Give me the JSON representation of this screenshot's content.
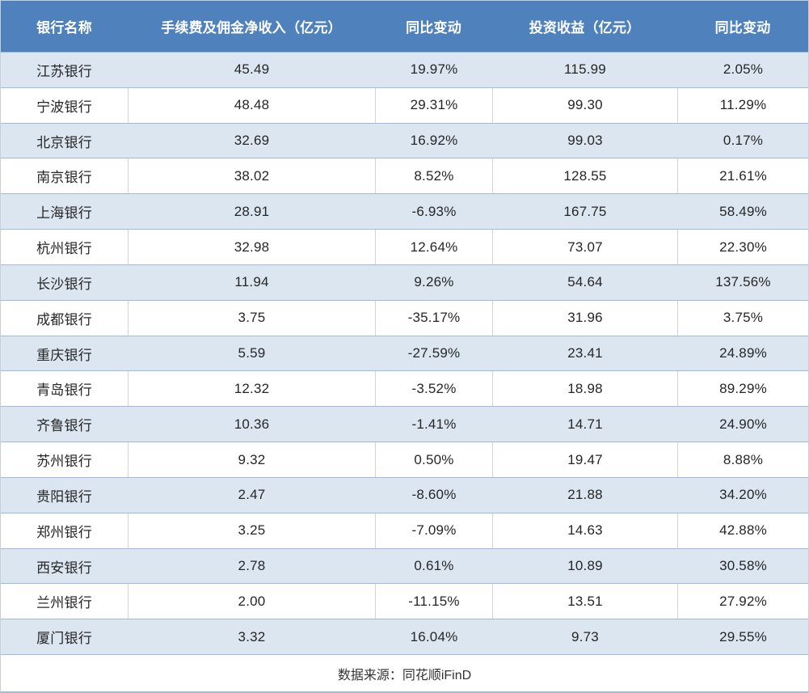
{
  "chart_data": {
    "type": "table",
    "columns": [
      "银行名称",
      "手续费及佣金净收入（亿元）",
      "同比变动",
      "投资收益（亿元）",
      "同比变动"
    ],
    "rows": [
      {
        "bank": "江苏银行",
        "fee": "45.49",
        "fee_yoy": "19.97%",
        "invest": "115.99",
        "invest_yoy": "2.05%"
      },
      {
        "bank": "宁波银行",
        "fee": "48.48",
        "fee_yoy": "29.31%",
        "invest": "99.30",
        "invest_yoy": "11.29%"
      },
      {
        "bank": "北京银行",
        "fee": "32.69",
        "fee_yoy": "16.92%",
        "invest": "99.03",
        "invest_yoy": "0.17%"
      },
      {
        "bank": "南京银行",
        "fee": "38.02",
        "fee_yoy": "8.52%",
        "invest": "128.55",
        "invest_yoy": "21.61%"
      },
      {
        "bank": "上海银行",
        "fee": "28.91",
        "fee_yoy": "-6.93%",
        "invest": "167.75",
        "invest_yoy": "58.49%"
      },
      {
        "bank": "杭州银行",
        "fee": "32.98",
        "fee_yoy": "12.64%",
        "invest": "73.07",
        "invest_yoy": "22.30%"
      },
      {
        "bank": "长沙银行",
        "fee": "11.94",
        "fee_yoy": "9.26%",
        "invest": "54.64",
        "invest_yoy": "137.56%"
      },
      {
        "bank": "成都银行",
        "fee": "3.75",
        "fee_yoy": "-35.17%",
        "invest": "31.96",
        "invest_yoy": "3.75%"
      },
      {
        "bank": "重庆银行",
        "fee": "5.59",
        "fee_yoy": "-27.59%",
        "invest": "23.41",
        "invest_yoy": "24.89%"
      },
      {
        "bank": "青岛银行",
        "fee": "12.32",
        "fee_yoy": "-3.52%",
        "invest": "18.98",
        "invest_yoy": "89.29%"
      },
      {
        "bank": "齐鲁银行",
        "fee": "10.36",
        "fee_yoy": "-1.41%",
        "invest": "14.71",
        "invest_yoy": "24.90%"
      },
      {
        "bank": "苏州银行",
        "fee": "9.32",
        "fee_yoy": "0.50%",
        "invest": "19.47",
        "invest_yoy": "8.88%"
      },
      {
        "bank": "贵阳银行",
        "fee": "2.47",
        "fee_yoy": "-8.60%",
        "invest": "21.88",
        "invest_yoy": "34.20%"
      },
      {
        "bank": "郑州银行",
        "fee": "3.25",
        "fee_yoy": "-7.09%",
        "invest": "14.63",
        "invest_yoy": "42.88%"
      },
      {
        "bank": "西安银行",
        "fee": "2.78",
        "fee_yoy": "0.61%",
        "invest": "10.89",
        "invest_yoy": "30.58%"
      },
      {
        "bank": "兰州银行",
        "fee": "2.00",
        "fee_yoy": "-11.15%",
        "invest": "13.51",
        "invest_yoy": "27.92%"
      },
      {
        "bank": "厦门银行",
        "fee": "3.32",
        "fee_yoy": "16.04%",
        "invest": "9.73",
        "invest_yoy": "29.55%"
      }
    ],
    "source_note": "数据来源：同花顺iFinD"
  },
  "colors": {
    "header_bg": "#4f81bd",
    "header_text": "#ffffff",
    "alt_row_bg": "#dce6f1",
    "white_row_bg": "#ffffff",
    "row_divider": "#9fbbdb",
    "column_divider": "#d4d4d4",
    "body_text": "#262626"
  }
}
